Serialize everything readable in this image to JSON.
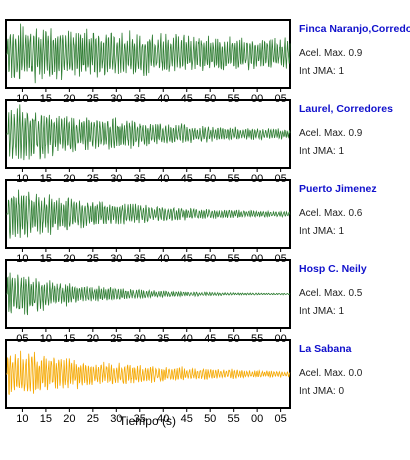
{
  "chart_data": {
    "type": "line",
    "xlabel": "Tiempo (s)",
    "panels": [
      {
        "name": "Finca Naranjo,Corredores",
        "acel_label": "Acel. Max. 0.9",
        "jma_label": "Int JMA: 1",
        "color": "#2e7d32",
        "ticks": [
          "10",
          "15",
          "20",
          "25",
          "30",
          "35",
          "40",
          "45",
          "50",
          "55",
          "00",
          "05"
        ],
        "tick_values": [
          10,
          15,
          20,
          25,
          30,
          35,
          40,
          45,
          50,
          55,
          60,
          65
        ],
        "xlim": [
          6.5,
          67
        ],
        "onset": 6.8,
        "amp": 0.9,
        "seed": 11,
        "decay": 0.012
      },
      {
        "name": "Laurel, Corredores",
        "acel_label": "Acel. Max. 0.9",
        "jma_label": "Int JMA: 1",
        "color": "#2e7d32",
        "ticks": [
          "10",
          "15",
          "20",
          "25",
          "30",
          "35",
          "40",
          "45",
          "50",
          "55",
          "00",
          "05"
        ],
        "tick_values": [
          10,
          15,
          20,
          25,
          30,
          35,
          40,
          45,
          50,
          55,
          60,
          65
        ],
        "xlim": [
          6.5,
          67
        ],
        "onset": 7.0,
        "amp": 0.9,
        "seed": 23,
        "decay": 0.03
      },
      {
        "name": "Puerto Jimenez",
        "acel_label": "Acel. Max. 0.6",
        "jma_label": "Int JMA: 1",
        "color": "#2e7d32",
        "ticks": [
          "10",
          "15",
          "20",
          "25",
          "30",
          "35",
          "40",
          "45",
          "50",
          "55",
          "00",
          "05"
        ],
        "tick_values": [
          10,
          15,
          20,
          25,
          30,
          35,
          40,
          45,
          50,
          55,
          60,
          65
        ],
        "xlim": [
          6.5,
          67
        ],
        "onset": 7.0,
        "amp": 0.6,
        "seed": 37,
        "decay": 0.04
      },
      {
        "name": "Hosp C. Neily",
        "acel_label": "Acel. Max. 0.5",
        "jma_label": "Int JMA: 1",
        "color": "#2e7d32",
        "ticks": [
          "05",
          "10",
          "15",
          "20",
          "25",
          "30",
          "35",
          "40",
          "45",
          "50",
          "55",
          "00"
        ],
        "tick_values": [
          5,
          10,
          15,
          20,
          25,
          30,
          35,
          40,
          45,
          50,
          55,
          60
        ],
        "xlim": [
          1.5,
          62
        ],
        "onset": 1.8,
        "amp": 0.5,
        "seed": 51,
        "decay": 0.06
      },
      {
        "name": "La Sabana",
        "acel_label": "Acel. Max. 0.0",
        "jma_label": "Int JMA: 0",
        "color": "#f5a800",
        "ticks": [
          "10",
          "15",
          "20",
          "25",
          "30",
          "35",
          "40",
          "45",
          "50",
          "55",
          "00",
          "05"
        ],
        "tick_values": [
          10,
          15,
          20,
          25,
          30,
          35,
          40,
          45,
          50,
          55,
          60,
          65
        ],
        "xlim": [
          6.5,
          67
        ],
        "onset": 6.8,
        "amp": 0.05,
        "seed": 73,
        "decay": 0.035
      }
    ]
  }
}
